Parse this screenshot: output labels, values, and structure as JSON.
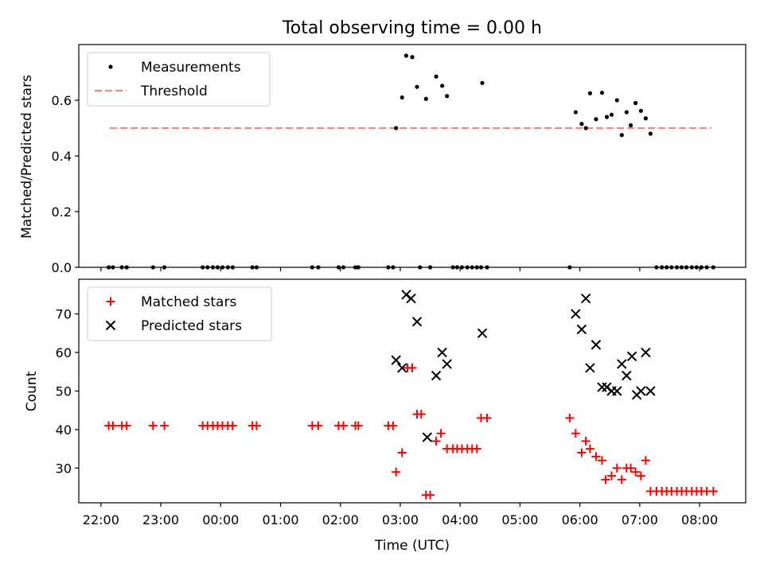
{
  "figure": {
    "title": "Total observing time = 0.00 h",
    "xlabel": "Time (UTC)",
    "xticks": [
      {
        "label": "22:00",
        "t": 22.0
      },
      {
        "label": "23:00",
        "t": 23.0
      },
      {
        "label": "00:00",
        "t": 24.0
      },
      {
        "label": "01:00",
        "t": 25.0
      },
      {
        "label": "02:00",
        "t": 26.0
      },
      {
        "label": "03:00",
        "t": 27.0
      },
      {
        "label": "04:00",
        "t": 28.0
      },
      {
        "label": "05:00",
        "t": 29.0
      },
      {
        "label": "06:00",
        "t": 30.0
      },
      {
        "label": "07:00",
        "t": 31.0
      },
      {
        "label": "08:00",
        "t": 32.0
      }
    ],
    "xlim": [
      21.63,
      32.77
    ]
  },
  "chart_data": [
    {
      "type": "scatter",
      "panel": "top",
      "ylabel": "Matched/Predicted stars",
      "ylim": [
        0,
        0.8
      ],
      "yticks": [
        {
          "label": "0.0",
          "v": 0.0
        },
        {
          "label": "0.2",
          "v": 0.2
        },
        {
          "label": "0.4",
          "v": 0.4
        },
        {
          "label": "0.6",
          "v": 0.6
        }
      ],
      "legend": {
        "placement": "top-left",
        "entries": [
          "Measurements",
          "Threshold"
        ]
      },
      "colors": {
        "measurements": "#000000",
        "threshold": "#ff7f7f"
      },
      "threshold": {
        "name": "Threshold",
        "value": 0.5,
        "x_start": 22.15,
        "x_end": 32.2
      },
      "series": [
        {
          "name": "Measurements",
          "marker": "dot",
          "points": [
            [
              22.13,
              0
            ],
            [
              22.2,
              0
            ],
            [
              22.35,
              0
            ],
            [
              22.43,
              0
            ],
            [
              22.87,
              0
            ],
            [
              23.06,
              0
            ],
            [
              23.7,
              0
            ],
            [
              23.78,
              0
            ],
            [
              23.87,
              0
            ],
            [
              23.95,
              0
            ],
            [
              24.03,
              0
            ],
            [
              24.12,
              0
            ],
            [
              24.2,
              0
            ],
            [
              24.53,
              0
            ],
            [
              24.6,
              0
            ],
            [
              25.53,
              0
            ],
            [
              25.63,
              0
            ],
            [
              25.97,
              0
            ],
            [
              26.05,
              0
            ],
            [
              26.25,
              0
            ],
            [
              26.3,
              0
            ],
            [
              26.8,
              0
            ],
            [
              26.88,
              0
            ],
            [
              26.93,
              0.5
            ],
            [
              27.03,
              0.61
            ],
            [
              27.1,
              0.76
            ],
            [
              27.2,
              0.755
            ],
            [
              27.28,
              0.648
            ],
            [
              27.33,
              0
            ],
            [
              27.43,
              0.605
            ],
            [
              27.5,
              0
            ],
            [
              27.6,
              0.685
            ],
            [
              27.7,
              0.652
            ],
            [
              27.78,
              0.615
            ],
            [
              27.88,
              0
            ],
            [
              27.95,
              0
            ],
            [
              28.03,
              0
            ],
            [
              28.12,
              0
            ],
            [
              28.2,
              0
            ],
            [
              28.28,
              0
            ],
            [
              28.35,
              0
            ],
            [
              28.45,
              0
            ],
            [
              28.37,
              0.662
            ],
            [
              29.83,
              0
            ],
            [
              29.93,
              0.557
            ],
            [
              30.03,
              0.515
            ],
            [
              30.1,
              0.5
            ],
            [
              30.17,
              0.625
            ],
            [
              30.27,
              0.532
            ],
            [
              30.37,
              0.627
            ],
            [
              30.45,
              0.54
            ],
            [
              30.53,
              0.548
            ],
            [
              30.62,
              0.6
            ],
            [
              30.7,
              0.475
            ],
            [
              30.78,
              0.557
            ],
            [
              30.85,
              0.51
            ],
            [
              30.93,
              0.59
            ],
            [
              31.02,
              0.562
            ],
            [
              31.1,
              0.535
            ],
            [
              31.18,
              0.48
            ],
            [
              31.28,
              0
            ],
            [
              31.37,
              0
            ],
            [
              31.45,
              0
            ],
            [
              31.53,
              0
            ],
            [
              31.62,
              0
            ],
            [
              31.7,
              0
            ],
            [
              31.78,
              0
            ],
            [
              31.87,
              0
            ],
            [
              31.95,
              0
            ],
            [
              32.03,
              0
            ],
            [
              32.12,
              0
            ],
            [
              32.23,
              0
            ]
          ]
        }
      ]
    },
    {
      "type": "scatter",
      "panel": "bottom",
      "ylabel": "Count",
      "ylim": [
        21,
        79
      ],
      "yticks": [
        {
          "label": "30",
          "v": 30
        },
        {
          "label": "40",
          "v": 40
        },
        {
          "label": "50",
          "v": 50
        },
        {
          "label": "60",
          "v": 60
        },
        {
          "label": "70",
          "v": 70
        }
      ],
      "legend": {
        "placement": "top-left",
        "entries": [
          "Matched stars",
          "Predicted stars"
        ]
      },
      "colors": {
        "matched": "#ff0000",
        "predicted": "#000000"
      },
      "series": [
        {
          "name": "Matched stars",
          "marker": "plus",
          "points": [
            [
              22.13,
              41
            ],
            [
              22.2,
              41
            ],
            [
              22.35,
              41
            ],
            [
              22.43,
              41
            ],
            [
              22.87,
              41
            ],
            [
              23.06,
              41
            ],
            [
              23.7,
              41
            ],
            [
              23.78,
              41
            ],
            [
              23.87,
              41
            ],
            [
              23.95,
              41
            ],
            [
              24.03,
              41
            ],
            [
              24.12,
              41
            ],
            [
              24.2,
              41
            ],
            [
              24.53,
              41
            ],
            [
              24.6,
              41
            ],
            [
              25.53,
              41
            ],
            [
              25.63,
              41
            ],
            [
              25.97,
              41
            ],
            [
              26.05,
              41
            ],
            [
              26.25,
              41
            ],
            [
              26.3,
              41
            ],
            [
              26.8,
              41
            ],
            [
              26.88,
              41
            ],
            [
              26.93,
              29
            ],
            [
              27.03,
              34
            ],
            [
              27.12,
              56
            ],
            [
              27.2,
              56
            ],
            [
              27.28,
              44
            ],
            [
              27.35,
              44
            ],
            [
              27.43,
              23
            ],
            [
              27.5,
              23
            ],
            [
              27.6,
              37
            ],
            [
              27.68,
              39
            ],
            [
              27.78,
              35
            ],
            [
              27.88,
              35
            ],
            [
              27.95,
              35
            ],
            [
              28.03,
              35
            ],
            [
              28.12,
              35
            ],
            [
              28.2,
              35
            ],
            [
              28.28,
              35
            ],
            [
              28.35,
              43
            ],
            [
              28.45,
              43
            ],
            [
              29.83,
              43
            ],
            [
              29.93,
              39
            ],
            [
              30.03,
              34
            ],
            [
              30.1,
              37
            ],
            [
              30.17,
              35
            ],
            [
              30.27,
              33
            ],
            [
              30.37,
              32
            ],
            [
              30.43,
              27
            ],
            [
              30.53,
              28
            ],
            [
              30.62,
              30
            ],
            [
              30.7,
              27
            ],
            [
              30.78,
              30
            ],
            [
              30.85,
              30
            ],
            [
              30.93,
              29
            ],
            [
              31.02,
              28
            ],
            [
              31.1,
              32
            ],
            [
              31.18,
              24
            ],
            [
              31.28,
              24
            ],
            [
              31.37,
              24
            ],
            [
              31.45,
              24
            ],
            [
              31.53,
              24
            ],
            [
              31.62,
              24
            ],
            [
              31.7,
              24
            ],
            [
              31.78,
              24
            ],
            [
              31.87,
              24
            ],
            [
              31.95,
              24
            ],
            [
              32.03,
              24
            ],
            [
              32.12,
              24
            ],
            [
              32.23,
              24
            ]
          ]
        },
        {
          "name": "Predicted stars",
          "marker": "x",
          "points": [
            [
              26.93,
              58
            ],
            [
              27.03,
              56
            ],
            [
              27.1,
              75
            ],
            [
              27.18,
              74
            ],
            [
              27.28,
              68
            ],
            [
              27.45,
              38
            ],
            [
              27.6,
              54
            ],
            [
              27.7,
              60
            ],
            [
              27.78,
              57
            ],
            [
              28.37,
              65
            ],
            [
              29.93,
              70
            ],
            [
              30.03,
              66
            ],
            [
              30.1,
              74
            ],
            [
              30.17,
              56
            ],
            [
              30.27,
              62
            ],
            [
              30.37,
              51
            ],
            [
              30.45,
              51
            ],
            [
              30.53,
              50
            ],
            [
              30.62,
              50
            ],
            [
              30.7,
              57
            ],
            [
              30.78,
              54
            ],
            [
              30.87,
              59
            ],
            [
              30.95,
              49
            ],
            [
              31.02,
              50
            ],
            [
              31.1,
              60
            ],
            [
              31.18,
              50
            ]
          ]
        }
      ]
    }
  ]
}
